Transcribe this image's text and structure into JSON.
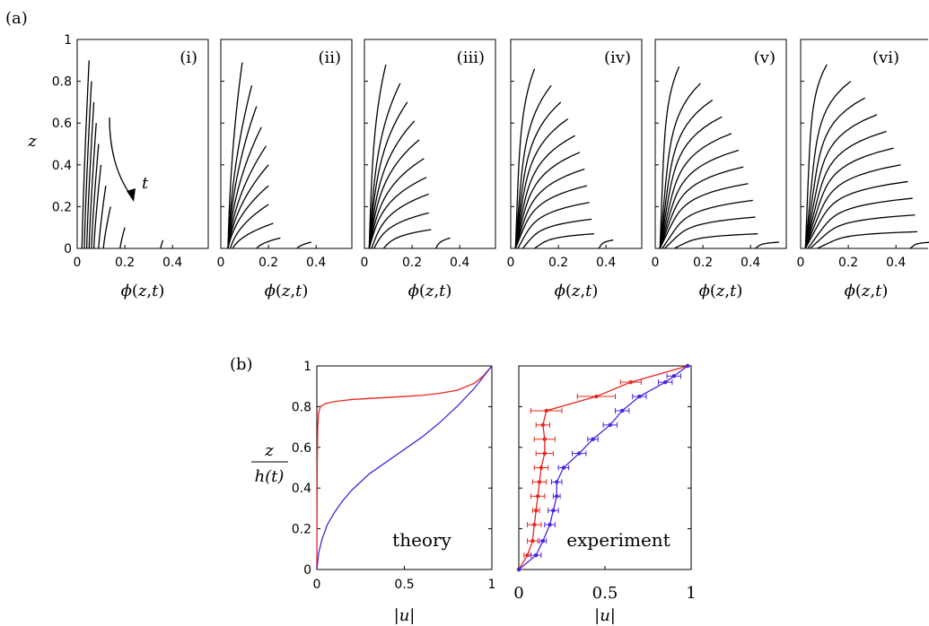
{
  "panel_labels": {
    "a": "(a)",
    "b": "(b)"
  },
  "chart_data": [
    {
      "type": "line",
      "panel": "(a)",
      "subpanel": "(i)",
      "xlabel": "ϕ(z,t)",
      "ylabel": "z",
      "xlim": [
        0,
        0.55
      ],
      "ylim": [
        0,
        1
      ],
      "xticks": [
        "0",
        "0.2",
        "0.4"
      ],
      "yticks": [
        "0",
        "0.2",
        "0.4",
        "0.6",
        "0.8",
        "1"
      ],
      "annotation": "t",
      "series": [
        {
          "top_z": 0.9,
          "phi_top": 0.05,
          "phi_bottom": 0.02,
          "curvature": 0.4
        },
        {
          "top_z": 0.8,
          "phi_top": 0.06,
          "phi_bottom": 0.03,
          "curvature": 0.4
        },
        {
          "top_z": 0.7,
          "phi_top": 0.07,
          "phi_bottom": 0.04,
          "curvature": 0.4
        },
        {
          "top_z": 0.6,
          "phi_top": 0.08,
          "phi_bottom": 0.05,
          "curvature": 0.4
        },
        {
          "top_z": 0.5,
          "phi_top": 0.09,
          "phi_bottom": 0.06,
          "curvature": 0.4
        },
        {
          "top_z": 0.4,
          "phi_top": 0.1,
          "phi_bottom": 0.07,
          "curvature": 0.4
        },
        {
          "top_z": 0.3,
          "phi_top": 0.12,
          "phi_bottom": 0.09,
          "curvature": 0.4
        },
        {
          "top_z": 0.2,
          "phi_top": 0.14,
          "phi_bottom": 0.11,
          "curvature": 0.4
        },
        {
          "top_z": 0.1,
          "phi_top": 0.2,
          "phi_bottom": 0.18,
          "curvature": 0.4
        },
        {
          "top_z": 0.04,
          "phi_top": 0.36,
          "phi_bottom": 0.35,
          "curvature": 0.4
        }
      ]
    },
    {
      "type": "line",
      "panel": "(a)",
      "subpanel": "(ii)",
      "xlabel": "ϕ(z,t)",
      "xlim": [
        0,
        0.55
      ],
      "ylim": [
        0,
        1
      ],
      "xticks": [
        "0",
        "0.2",
        "0.4"
      ],
      "series": [
        {
          "top_z": 0.89,
          "phi_top": 0.09,
          "phi_bottom": 0.03,
          "curvature": 1.2
        },
        {
          "top_z": 0.78,
          "phi_top": 0.13,
          "phi_bottom": 0.03,
          "curvature": 1.2
        },
        {
          "top_z": 0.68,
          "phi_top": 0.15,
          "phi_bottom": 0.03,
          "curvature": 1.2
        },
        {
          "top_z": 0.58,
          "phi_top": 0.17,
          "phi_bottom": 0.03,
          "curvature": 1.2
        },
        {
          "top_z": 0.49,
          "phi_top": 0.19,
          "phi_bottom": 0.03,
          "curvature": 1.2
        },
        {
          "top_z": 0.4,
          "phi_top": 0.2,
          "phi_bottom": 0.03,
          "curvature": 1.2
        },
        {
          "top_z": 0.3,
          "phi_top": 0.2,
          "phi_bottom": 0.03,
          "curvature": 1.2
        },
        {
          "top_z": 0.21,
          "phi_top": 0.2,
          "phi_bottom": 0.04,
          "curvature": 1.2
        },
        {
          "top_z": 0.12,
          "phi_top": 0.22,
          "phi_bottom": 0.05,
          "curvature": 1.2
        },
        {
          "top_z": 0.05,
          "phi_top": 0.25,
          "phi_bottom": 0.15,
          "curvature": 1.2
        },
        {
          "top_z": 0.03,
          "phi_top": 0.38,
          "phi_bottom": 0.32,
          "curvature": 1.2
        }
      ]
    },
    {
      "type": "line",
      "panel": "(a)",
      "subpanel": "(iii)",
      "xlabel": "ϕ(z,t)",
      "xlim": [
        0,
        0.55
      ],
      "ylim": [
        0,
        1
      ],
      "xticks": [
        "0",
        "0.2",
        "0.4"
      ],
      "series": [
        {
          "top_z": 0.88,
          "phi_top": 0.09,
          "phi_bottom": 0.02,
          "curvature": 2.5
        },
        {
          "top_z": 0.79,
          "phi_top": 0.15,
          "phi_bottom": 0.02,
          "curvature": 2.5
        },
        {
          "top_z": 0.7,
          "phi_top": 0.18,
          "phi_bottom": 0.02,
          "curvature": 2.5
        },
        {
          "top_z": 0.61,
          "phi_top": 0.21,
          "phi_bottom": 0.02,
          "curvature": 2.5
        },
        {
          "top_z": 0.52,
          "phi_top": 0.23,
          "phi_bottom": 0.02,
          "curvature": 2.5
        },
        {
          "top_z": 0.43,
          "phi_top": 0.25,
          "phi_bottom": 0.02,
          "curvature": 2.5
        },
        {
          "top_z": 0.34,
          "phi_top": 0.26,
          "phi_bottom": 0.02,
          "curvature": 2.5
        },
        {
          "top_z": 0.26,
          "phi_top": 0.27,
          "phi_bottom": 0.03,
          "curvature": 2.5
        },
        {
          "top_z": 0.17,
          "phi_top": 0.27,
          "phi_bottom": 0.04,
          "curvature": 2.5
        },
        {
          "top_z": 0.09,
          "phi_top": 0.28,
          "phi_bottom": 0.08,
          "curvature": 2.5
        },
        {
          "top_z": 0.05,
          "phi_top": 0.36,
          "phi_bottom": 0.3,
          "curvature": 2.5
        }
      ]
    },
    {
      "type": "line",
      "panel": "(a)",
      "subpanel": "(iv)",
      "xlabel": "ϕ(z,t)",
      "xlim": [
        0,
        0.55
      ],
      "ylim": [
        0,
        1
      ],
      "xticks": [
        "0",
        "0.2",
        "0.4"
      ],
      "series": [
        {
          "top_z": 0.86,
          "phi_top": 0.1,
          "phi_bottom": 0.02,
          "curvature": 4
        },
        {
          "top_z": 0.78,
          "phi_top": 0.17,
          "phi_bottom": 0.02,
          "curvature": 4
        },
        {
          "top_z": 0.7,
          "phi_top": 0.21,
          "phi_bottom": 0.02,
          "curvature": 4
        },
        {
          "top_z": 0.62,
          "phi_top": 0.24,
          "phi_bottom": 0.02,
          "curvature": 4
        },
        {
          "top_z": 0.54,
          "phi_top": 0.27,
          "phi_bottom": 0.02,
          "curvature": 4
        },
        {
          "top_z": 0.46,
          "phi_top": 0.29,
          "phi_bottom": 0.02,
          "curvature": 4
        },
        {
          "top_z": 0.38,
          "phi_top": 0.31,
          "phi_bottom": 0.02,
          "curvature": 4
        },
        {
          "top_z": 0.3,
          "phi_top": 0.32,
          "phi_bottom": 0.02,
          "curvature": 4
        },
        {
          "top_z": 0.22,
          "phi_top": 0.33,
          "phi_bottom": 0.03,
          "curvature": 4
        },
        {
          "top_z": 0.14,
          "phi_top": 0.34,
          "phi_bottom": 0.05,
          "curvature": 4
        },
        {
          "top_z": 0.07,
          "phi_top": 0.35,
          "phi_bottom": 0.1,
          "curvature": 4
        },
        {
          "top_z": 0.04,
          "phi_top": 0.43,
          "phi_bottom": 0.37,
          "curvature": 4
        }
      ]
    },
    {
      "type": "line",
      "panel": "(a)",
      "subpanel": "(v)",
      "xlabel": "ϕ(z,t)",
      "xlim": [
        0,
        0.55
      ],
      "ylim": [
        0,
        1
      ],
      "xticks": [
        "0",
        "0.2",
        "0.4"
      ],
      "series": [
        {
          "top_z": 0.87,
          "phi_top": 0.1,
          "phi_bottom": 0.02,
          "curvature": 5
        },
        {
          "top_z": 0.79,
          "phi_top": 0.19,
          "phi_bottom": 0.02,
          "curvature": 5
        },
        {
          "top_z": 0.71,
          "phi_top": 0.24,
          "phi_bottom": 0.02,
          "curvature": 5
        },
        {
          "top_z": 0.63,
          "phi_top": 0.28,
          "phi_bottom": 0.02,
          "curvature": 5
        },
        {
          "top_z": 0.55,
          "phi_top": 0.32,
          "phi_bottom": 0.02,
          "curvature": 5
        },
        {
          "top_z": 0.47,
          "phi_top": 0.35,
          "phi_bottom": 0.02,
          "curvature": 5
        },
        {
          "top_z": 0.39,
          "phi_top": 0.37,
          "phi_bottom": 0.02,
          "curvature": 5
        },
        {
          "top_z": 0.31,
          "phi_top": 0.39,
          "phi_bottom": 0.02,
          "curvature": 5
        },
        {
          "top_z": 0.23,
          "phi_top": 0.41,
          "phi_bottom": 0.03,
          "curvature": 5
        },
        {
          "top_z": 0.15,
          "phi_top": 0.42,
          "phi_bottom": 0.04,
          "curvature": 5
        },
        {
          "top_z": 0.07,
          "phi_top": 0.43,
          "phi_bottom": 0.08,
          "curvature": 5
        },
        {
          "top_z": 0.03,
          "phi_top": 0.52,
          "phi_bottom": 0.42,
          "curvature": 5
        }
      ]
    },
    {
      "type": "line",
      "panel": "(a)",
      "subpanel": "(vi)",
      "xlabel": "ϕ(z,t)",
      "xlim": [
        0,
        0.55
      ],
      "ylim": [
        0,
        1
      ],
      "xticks": [
        "0",
        "0.2",
        "0.4"
      ],
      "series": [
        {
          "top_z": 0.88,
          "phi_top": 0.11,
          "phi_bottom": 0.02,
          "curvature": 6
        },
        {
          "top_z": 0.8,
          "phi_top": 0.21,
          "phi_bottom": 0.02,
          "curvature": 6
        },
        {
          "top_z": 0.72,
          "phi_top": 0.27,
          "phi_bottom": 0.02,
          "curvature": 6
        },
        {
          "top_z": 0.64,
          "phi_top": 0.32,
          "phi_bottom": 0.02,
          "curvature": 6
        },
        {
          "top_z": 0.56,
          "phi_top": 0.36,
          "phi_bottom": 0.02,
          "curvature": 6
        },
        {
          "top_z": 0.48,
          "phi_top": 0.39,
          "phi_bottom": 0.02,
          "curvature": 6
        },
        {
          "top_z": 0.4,
          "phi_top": 0.42,
          "phi_bottom": 0.02,
          "curvature": 6
        },
        {
          "top_z": 0.32,
          "phi_top": 0.45,
          "phi_bottom": 0.02,
          "curvature": 6
        },
        {
          "top_z": 0.24,
          "phi_top": 0.47,
          "phi_bottom": 0.03,
          "curvature": 6
        },
        {
          "top_z": 0.16,
          "phi_top": 0.48,
          "phi_bottom": 0.04,
          "curvature": 6
        },
        {
          "top_z": 0.08,
          "phi_top": 0.49,
          "phi_bottom": 0.07,
          "curvature": 6
        },
        {
          "top_z": 0.03,
          "phi_top": 0.55,
          "phi_bottom": 0.46,
          "curvature": 6
        }
      ]
    },
    {
      "type": "line",
      "panel": "(b)",
      "title": "theory",
      "xlabel": "|u|",
      "ylabel": "z / h(t)",
      "xlim": [
        0,
        1
      ],
      "ylim": [
        0,
        1
      ],
      "xticks": [
        "0",
        "0.5",
        "1"
      ],
      "yticks": [
        "0",
        "0.2",
        "0.4",
        "0.6",
        "0.8",
        "1"
      ],
      "series": [
        {
          "color": "#e8261e",
          "x": [
            0,
            0.002,
            0.005,
            0.01,
            0.02,
            0.05,
            0.1,
            0.2,
            0.3,
            0.4,
            0.5,
            0.6,
            0.7,
            0.8,
            0.9,
            0.95,
            1.0
          ],
          "y": [
            0,
            0.5,
            0.7,
            0.77,
            0.8,
            0.815,
            0.825,
            0.835,
            0.84,
            0.845,
            0.85,
            0.855,
            0.865,
            0.88,
            0.915,
            0.95,
            1.0
          ]
        },
        {
          "color": "#4b23e0",
          "x": [
            0,
            0.01,
            0.03,
            0.06,
            0.1,
            0.15,
            0.2,
            0.3,
            0.4,
            0.5,
            0.6,
            0.7,
            0.8,
            0.9,
            1.0
          ],
          "y": [
            0,
            0.08,
            0.15,
            0.22,
            0.28,
            0.34,
            0.39,
            0.47,
            0.53,
            0.59,
            0.65,
            0.72,
            0.8,
            0.89,
            1.0
          ]
        }
      ]
    },
    {
      "type": "line",
      "panel": "(b)",
      "title": "experiment",
      "xlabel": "|u|",
      "xlim": [
        0,
        1
      ],
      "ylim": [
        0,
        1
      ],
      "xticks": [
        "0",
        "0.5",
        "1"
      ],
      "series": [
        {
          "color": "#e8261e",
          "x": [
            0,
            0.05,
            0.08,
            0.09,
            0.1,
            0.11,
            0.12,
            0.13,
            0.15,
            0.15,
            0.14,
            0.16,
            0.45,
            0.65,
            0.98
          ],
          "y": [
            0,
            0.07,
            0.14,
            0.22,
            0.29,
            0.36,
            0.43,
            0.5,
            0.57,
            0.64,
            0.71,
            0.78,
            0.85,
            0.92,
            1.0
          ],
          "err": [
            0,
            0.02,
            0.03,
            0.04,
            0.02,
            0.04,
            0.04,
            0.04,
            0.05,
            0.06,
            0.04,
            0.09,
            0.11,
            0.06,
            0
          ]
        },
        {
          "color": "#4b23e0",
          "x": [
            0,
            0.1,
            0.14,
            0.18,
            0.2,
            0.22,
            0.22,
            0.26,
            0.35,
            0.43,
            0.53,
            0.6,
            0.7,
            0.85,
            0.9,
            0.98
          ],
          "y": [
            0,
            0.07,
            0.14,
            0.22,
            0.29,
            0.36,
            0.43,
            0.5,
            0.57,
            0.64,
            0.71,
            0.78,
            0.85,
            0.92,
            0.95,
            1.0
          ],
          "err": [
            0,
            0.03,
            0.02,
            0.03,
            0.03,
            0.02,
            0.03,
            0.03,
            0.04,
            0.03,
            0.04,
            0.04,
            0.04,
            0.04,
            0.04,
            0
          ]
        }
      ]
    }
  ]
}
